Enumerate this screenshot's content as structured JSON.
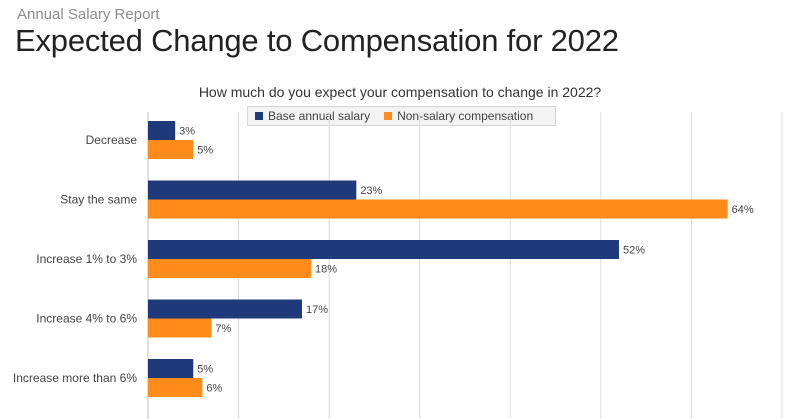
{
  "header": {
    "eyebrow": "Annual Salary Report",
    "title": "Expected Change to Compensation for 2022"
  },
  "chart_data": {
    "type": "bar",
    "orientation": "horizontal",
    "title": "How much do you expect your compensation to change in 2022?",
    "categories": [
      "Decrease",
      "Stay the same",
      "Increase 1% to 3%",
      "Increase 4% to 6%",
      "Increase more than 6%"
    ],
    "series": [
      {
        "name": "Base annual salary",
        "values": [
          3,
          23,
          52,
          17,
          5
        ],
        "labels": [
          "3%",
          "23%",
          "52%",
          "17%",
          "5%"
        ],
        "color": "#1f3a7a"
      },
      {
        "name": "Non-salary compensation",
        "values": [
          5,
          64,
          18,
          7,
          6
        ],
        "labels": [
          "5%",
          "64%",
          "18%",
          "7%",
          "6%"
        ],
        "color": "#ff8c1a"
      }
    ],
    "xlim": [
      0,
      70
    ],
    "grid": true,
    "legend_position": "top"
  }
}
